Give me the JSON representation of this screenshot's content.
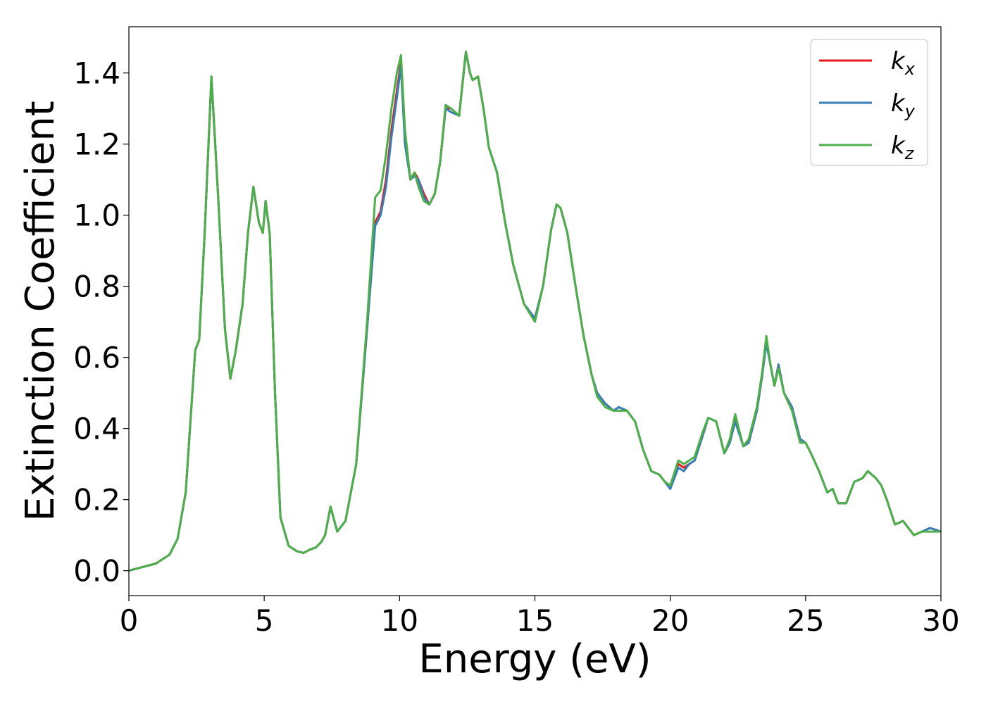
{
  "chart_data": {
    "type": "line",
    "title": "",
    "xlabel": "Energy (eV)",
    "ylabel": "Extinction Coefficient",
    "xlim": [
      0,
      30
    ],
    "ylim": [
      -0.07,
      1.53
    ],
    "xticks": [
      0,
      5,
      10,
      15,
      20,
      25,
      30
    ],
    "xtick_labels": [
      "0",
      "5",
      "10",
      "15",
      "20",
      "25",
      "30"
    ],
    "yticks": [
      0.0,
      0.2,
      0.4,
      0.6,
      0.8,
      1.0,
      1.2,
      1.4
    ],
    "ytick_labels": [
      "0.0",
      "0.2",
      "0.4",
      "0.6",
      "0.8",
      "1.0",
      "1.2",
      "1.4"
    ],
    "grid": false,
    "legend_position": "top-right",
    "series": [
      {
        "name": "k_x",
        "label_base": "k",
        "label_sub": "x",
        "color": "#e41a1c",
        "x": [
          0,
          0.5,
          1.0,
          1.5,
          1.8,
          2.1,
          2.3,
          2.45,
          2.6,
          2.8,
          3.05,
          3.3,
          3.55,
          3.75,
          3.95,
          4.2,
          4.4,
          4.6,
          4.8,
          4.95,
          5.05,
          5.2,
          5.4,
          5.6,
          5.9,
          6.2,
          6.45,
          6.7,
          6.9,
          7.1,
          7.25,
          7.45,
          7.7,
          8.0,
          8.4,
          8.8,
          9.1,
          9.3,
          9.5,
          9.7,
          9.9,
          10.05,
          10.2,
          10.4,
          10.55,
          10.7,
          10.9,
          11.1,
          11.3,
          11.5,
          11.7,
          11.9,
          12.2,
          12.45,
          12.6,
          12.7,
          12.9,
          13.1,
          13.3,
          13.6,
          13.9,
          14.2,
          14.6,
          15.0,
          15.3,
          15.6,
          15.8,
          15.95,
          16.2,
          16.5,
          16.8,
          17.1,
          17.3,
          17.6,
          17.9,
          18.1,
          18.4,
          18.7,
          19.0,
          19.3,
          19.6,
          19.8,
          20.0,
          20.3,
          20.5,
          20.7,
          20.9,
          21.2,
          21.4,
          21.7,
          22.0,
          22.2,
          22.4,
          22.7,
          22.9,
          23.2,
          23.4,
          23.55,
          23.7,
          23.85,
          24.0,
          24.2,
          24.5,
          24.8,
          25.0,
          25.2,
          25.5,
          25.8,
          26.0,
          26.2,
          26.5,
          26.8,
          27.1,
          27.3,
          27.6,
          27.8,
          28.0,
          28.3,
          28.6,
          28.8,
          29.0,
          29.3,
          29.6,
          30.0
        ],
        "y": [
          0.0,
          0.01,
          0.02,
          0.045,
          0.09,
          0.22,
          0.45,
          0.62,
          0.65,
          0.95,
          1.39,
          1.05,
          0.68,
          0.54,
          0.62,
          0.75,
          0.95,
          1.08,
          0.98,
          0.95,
          1.04,
          0.95,
          0.5,
          0.15,
          0.07,
          0.055,
          0.05,
          0.06,
          0.065,
          0.08,
          0.1,
          0.18,
          0.11,
          0.14,
          0.3,
          0.68,
          0.98,
          1.01,
          1.1,
          1.24,
          1.35,
          1.43,
          1.22,
          1.1,
          1.12,
          1.1,
          1.06,
          1.03,
          1.06,
          1.15,
          1.3,
          1.3,
          1.28,
          1.46,
          1.4,
          1.38,
          1.39,
          1.3,
          1.19,
          1.12,
          0.98,
          0.86,
          0.75,
          0.71,
          0.8,
          0.96,
          1.03,
          1.02,
          0.95,
          0.8,
          0.66,
          0.55,
          0.5,
          0.47,
          0.45,
          0.46,
          0.45,
          0.42,
          0.34,
          0.28,
          0.27,
          0.25,
          0.24,
          0.3,
          0.29,
          0.3,
          0.31,
          0.38,
          0.43,
          0.42,
          0.33,
          0.36,
          0.43,
          0.35,
          0.36,
          0.45,
          0.55,
          0.65,
          0.58,
          0.52,
          0.58,
          0.5,
          0.46,
          0.37,
          0.36,
          0.33,
          0.28,
          0.22,
          0.23,
          0.19,
          0.19,
          0.25,
          0.26,
          0.28,
          0.26,
          0.24,
          0.2,
          0.13,
          0.14,
          0.12,
          0.1,
          0.11,
          0.12,
          0.11
        ]
      },
      {
        "name": "k_y",
        "label_base": "k",
        "label_sub": "y",
        "color": "#377eb8",
        "x": [
          0,
          0.5,
          1.0,
          1.5,
          1.8,
          2.1,
          2.3,
          2.45,
          2.6,
          2.8,
          3.05,
          3.3,
          3.55,
          3.75,
          3.95,
          4.2,
          4.4,
          4.6,
          4.8,
          4.95,
          5.05,
          5.2,
          5.4,
          5.6,
          5.9,
          6.2,
          6.45,
          6.7,
          6.9,
          7.1,
          7.25,
          7.45,
          7.7,
          8.0,
          8.4,
          8.8,
          9.1,
          9.3,
          9.5,
          9.7,
          9.9,
          10.05,
          10.2,
          10.4,
          10.55,
          10.7,
          10.9,
          11.1,
          11.3,
          11.5,
          11.7,
          11.9,
          12.2,
          12.45,
          12.6,
          12.7,
          12.9,
          13.1,
          13.3,
          13.6,
          13.9,
          14.2,
          14.6,
          15.0,
          15.3,
          15.6,
          15.8,
          15.95,
          16.2,
          16.5,
          16.8,
          17.1,
          17.3,
          17.6,
          17.9,
          18.1,
          18.4,
          18.7,
          19.0,
          19.3,
          19.6,
          19.8,
          20.0,
          20.3,
          20.5,
          20.7,
          20.9,
          21.2,
          21.4,
          21.7,
          22.0,
          22.2,
          22.4,
          22.7,
          22.9,
          23.2,
          23.4,
          23.55,
          23.7,
          23.85,
          24.0,
          24.2,
          24.5,
          24.8,
          25.0,
          25.2,
          25.5,
          25.8,
          26.0,
          26.2,
          26.5,
          26.8,
          27.1,
          27.3,
          27.6,
          27.8,
          28.0,
          28.3,
          28.6,
          28.8,
          29.0,
          29.3,
          29.6,
          30.0
        ],
        "y": [
          0.0,
          0.01,
          0.02,
          0.045,
          0.09,
          0.22,
          0.45,
          0.62,
          0.65,
          0.95,
          1.39,
          1.05,
          0.68,
          0.54,
          0.62,
          0.75,
          0.95,
          1.08,
          0.98,
          0.95,
          1.04,
          0.95,
          0.5,
          0.15,
          0.07,
          0.055,
          0.05,
          0.06,
          0.065,
          0.08,
          0.1,
          0.18,
          0.11,
          0.14,
          0.3,
          0.68,
          0.97,
          1.0,
          1.08,
          1.22,
          1.33,
          1.42,
          1.2,
          1.1,
          1.11,
          1.1,
          1.05,
          1.03,
          1.06,
          1.15,
          1.3,
          1.29,
          1.28,
          1.46,
          1.4,
          1.38,
          1.39,
          1.3,
          1.19,
          1.12,
          0.98,
          0.86,
          0.75,
          0.71,
          0.8,
          0.96,
          1.03,
          1.02,
          0.95,
          0.8,
          0.66,
          0.55,
          0.5,
          0.47,
          0.45,
          0.46,
          0.45,
          0.42,
          0.34,
          0.28,
          0.27,
          0.25,
          0.23,
          0.29,
          0.28,
          0.3,
          0.31,
          0.38,
          0.43,
          0.42,
          0.33,
          0.36,
          0.42,
          0.35,
          0.36,
          0.45,
          0.55,
          0.64,
          0.58,
          0.52,
          0.58,
          0.5,
          0.46,
          0.37,
          0.36,
          0.33,
          0.28,
          0.22,
          0.23,
          0.19,
          0.19,
          0.25,
          0.26,
          0.28,
          0.26,
          0.24,
          0.2,
          0.13,
          0.14,
          0.12,
          0.1,
          0.11,
          0.12,
          0.11
        ]
      },
      {
        "name": "k_z",
        "label_base": "k",
        "label_sub": "z",
        "color": "#4daf4a",
        "x": [
          0,
          0.5,
          1.0,
          1.5,
          1.8,
          2.1,
          2.3,
          2.45,
          2.6,
          2.8,
          3.05,
          3.3,
          3.55,
          3.75,
          3.95,
          4.2,
          4.4,
          4.6,
          4.8,
          4.95,
          5.05,
          5.2,
          5.4,
          5.6,
          5.9,
          6.2,
          6.45,
          6.7,
          6.9,
          7.1,
          7.25,
          7.45,
          7.7,
          8.0,
          8.4,
          8.8,
          9.1,
          9.3,
          9.5,
          9.7,
          9.9,
          10.05,
          10.2,
          10.4,
          10.55,
          10.7,
          10.9,
          11.1,
          11.3,
          11.5,
          11.7,
          11.9,
          12.2,
          12.45,
          12.6,
          12.7,
          12.9,
          13.1,
          13.3,
          13.6,
          13.9,
          14.2,
          14.6,
          15.0,
          15.3,
          15.6,
          15.8,
          15.95,
          16.2,
          16.5,
          16.8,
          17.1,
          17.3,
          17.6,
          17.9,
          18.1,
          18.4,
          18.7,
          19.0,
          19.3,
          19.6,
          19.8,
          20.0,
          20.3,
          20.5,
          20.7,
          20.9,
          21.2,
          21.4,
          21.7,
          22.0,
          22.2,
          22.4,
          22.7,
          22.9,
          23.2,
          23.4,
          23.55,
          23.7,
          23.85,
          24.0,
          24.2,
          24.5,
          24.8,
          25.0,
          25.2,
          25.5,
          25.8,
          26.0,
          26.2,
          26.5,
          26.8,
          27.1,
          27.3,
          27.6,
          27.8,
          28.0,
          28.3,
          28.6,
          28.8,
          29.0,
          29.3,
          29.6,
          30.0
        ],
        "y": [
          0.0,
          0.01,
          0.02,
          0.045,
          0.09,
          0.22,
          0.45,
          0.62,
          0.65,
          0.95,
          1.39,
          1.05,
          0.68,
          0.54,
          0.62,
          0.75,
          0.95,
          1.08,
          0.98,
          0.95,
          1.04,
          0.95,
          0.5,
          0.15,
          0.07,
          0.055,
          0.05,
          0.06,
          0.065,
          0.08,
          0.1,
          0.18,
          0.11,
          0.14,
          0.3,
          0.7,
          1.05,
          1.07,
          1.17,
          1.3,
          1.4,
          1.45,
          1.24,
          1.1,
          1.12,
          1.08,
          1.04,
          1.03,
          1.06,
          1.15,
          1.31,
          1.3,
          1.28,
          1.46,
          1.4,
          1.38,
          1.39,
          1.3,
          1.19,
          1.12,
          0.98,
          0.86,
          0.75,
          0.7,
          0.8,
          0.96,
          1.03,
          1.02,
          0.95,
          0.8,
          0.66,
          0.55,
          0.49,
          0.46,
          0.45,
          0.45,
          0.45,
          0.42,
          0.34,
          0.28,
          0.27,
          0.25,
          0.24,
          0.31,
          0.3,
          0.31,
          0.32,
          0.39,
          0.43,
          0.42,
          0.33,
          0.37,
          0.44,
          0.35,
          0.37,
          0.46,
          0.56,
          0.66,
          0.58,
          0.52,
          0.57,
          0.5,
          0.45,
          0.36,
          0.36,
          0.33,
          0.28,
          0.22,
          0.23,
          0.19,
          0.19,
          0.25,
          0.26,
          0.28,
          0.26,
          0.24,
          0.2,
          0.13,
          0.14,
          0.12,
          0.1,
          0.11,
          0.11,
          0.11
        ]
      }
    ]
  }
}
